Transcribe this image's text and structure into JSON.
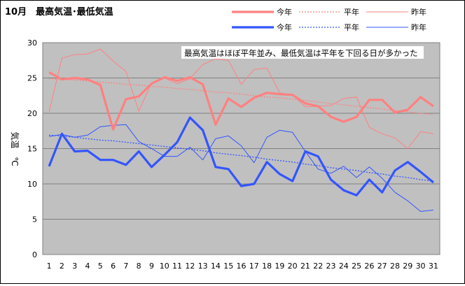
{
  "chart_data": {
    "type": "line",
    "title": "10月　最高気温･最低気温",
    "ylabel": "気温　℃",
    "xlabel": "",
    "annotation": "最高気温はほぼ平年並み、最低気温は平年を下回る日が多かった",
    "ylim": [
      0,
      30
    ],
    "yticks": [
      0,
      5,
      10,
      15,
      20,
      25,
      30
    ],
    "x": [
      1,
      2,
      3,
      4,
      5,
      6,
      7,
      8,
      9,
      10,
      11,
      12,
      13,
      14,
      15,
      16,
      17,
      18,
      19,
      20,
      21,
      22,
      23,
      24,
      25,
      26,
      27,
      28,
      29,
      30,
      31
    ],
    "grid": true,
    "legend": [
      {
        "label": "今年",
        "series": "max_this"
      },
      {
        "label": "平年",
        "series": "max_normal"
      },
      {
        "label": "昨年",
        "series": "max_last"
      },
      {
        "label": "今年",
        "series": "min_this"
      },
      {
        "label": "平年",
        "series": "min_normal"
      },
      {
        "label": "昨年",
        "series": "min_last"
      }
    ],
    "series": [
      {
        "key": "max_this",
        "color": "#ff8080",
        "style": "thick",
        "values": [
          25.8,
          24.8,
          25.0,
          24.8,
          24.0,
          17.7,
          22.0,
          22.4,
          24.2,
          25.1,
          24.6,
          25.1,
          24.1,
          18.4,
          22.1,
          20.9,
          22.2,
          22.9,
          22.7,
          22.6,
          21.4,
          21.0,
          19.5,
          18.8,
          19.5,
          21.9,
          21.9,
          20.1,
          20.5,
          22.3,
          21.0
        ]
      },
      {
        "key": "max_normal",
        "color": "#ff8080",
        "style": "dotted",
        "values": [
          24.9,
          24.8,
          24.7,
          24.6,
          24.4,
          24.3,
          24.1,
          24.0,
          23.8,
          23.7,
          23.5,
          23.4,
          23.2,
          23.0,
          22.9,
          22.7,
          22.5,
          22.3,
          22.2,
          22.0,
          21.8,
          21.6,
          21.4,
          21.2,
          21.0,
          20.8,
          20.6,
          20.4,
          20.2,
          20.0,
          19.8
        ]
      },
      {
        "key": "max_last",
        "color": "#ff8080",
        "style": "thin",
        "values": [
          20.2,
          27.8,
          28.3,
          28.4,
          29.1,
          27.4,
          25.9,
          20.3,
          24.3,
          25.0,
          24.2,
          24.9,
          26.9,
          27.7,
          27.5,
          24.1,
          26.2,
          26.4,
          22.9,
          22.6,
          20.9,
          21.0,
          21.1,
          22.1,
          22.3,
          18.0,
          17.1,
          16.5,
          15.0,
          17.4,
          17.1
        ]
      },
      {
        "key": "min_this",
        "color": "#3355ff",
        "style": "thick",
        "values": [
          12.5,
          17.1,
          14.6,
          14.7,
          13.4,
          13.4,
          12.7,
          14.6,
          12.4,
          14.1,
          15.9,
          19.4,
          17.6,
          12.4,
          12.1,
          9.7,
          10.0,
          13.1,
          11.4,
          10.4,
          14.6,
          13.9,
          10.6,
          9.1,
          8.4,
          10.6,
          8.8,
          11.9,
          13.1,
          11.7,
          10.2
        ]
      },
      {
        "key": "min_normal",
        "color": "#3355ff",
        "style": "dotted",
        "values": [
          16.9,
          16.8,
          16.6,
          16.4,
          16.2,
          16.1,
          15.9,
          15.7,
          15.5,
          15.3,
          15.1,
          14.9,
          14.7,
          14.4,
          14.2,
          14.0,
          13.8,
          13.5,
          13.3,
          13.1,
          12.8,
          12.6,
          12.3,
          12.1,
          11.9,
          11.6,
          11.4,
          11.1,
          10.9,
          10.6,
          10.4
        ]
      },
      {
        "key": "min_last",
        "color": "#3355ff",
        "style": "thin",
        "values": [
          16.7,
          17.0,
          16.6,
          16.9,
          18.1,
          18.3,
          18.4,
          16.0,
          15.0,
          13.9,
          13.9,
          15.2,
          13.4,
          16.4,
          16.8,
          15.4,
          13.0,
          16.6,
          17.6,
          17.3,
          14.6,
          12.1,
          11.5,
          12.5,
          10.9,
          12.4,
          10.8,
          8.8,
          7.6,
          6.1,
          6.3
        ]
      }
    ]
  }
}
